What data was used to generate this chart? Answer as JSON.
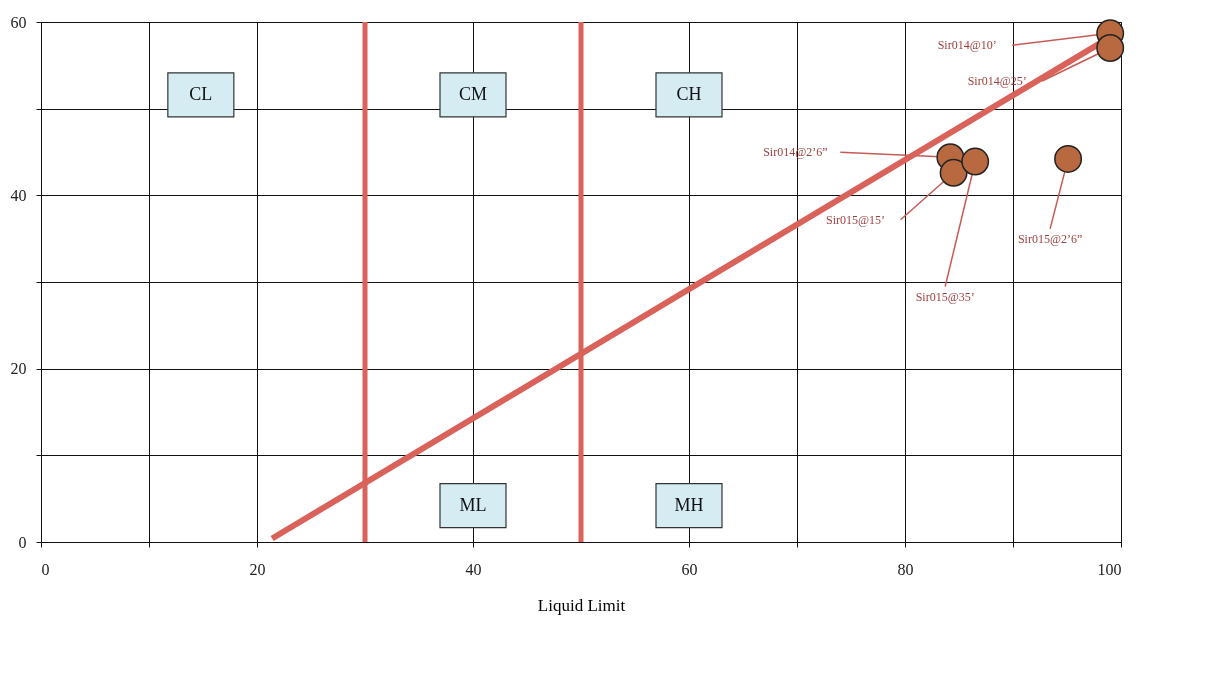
{
  "chart_data": {
    "type": "scatter",
    "xlabel": "Liquid Limit",
    "xlim": [
      0,
      100
    ],
    "ylim": [
      0,
      60
    ],
    "xticks": [
      0,
      {
        "value": 10,
        "label": null
      },
      20,
      40,
      60,
      {
        "value": 70,
        "label": null
      },
      80,
      {
        "value": 90,
        "label": null
      },
      100
    ],
    "yticks": [
      0,
      {
        "value": 10,
        "label": null
      },
      20,
      {
        "value": 30,
        "label": null
      },
      40,
      {
        "value": 50,
        "label": null
      },
      60
    ],
    "grid": true,
    "series": [
      {
        "color": "#b8693f",
        "marker": "circle",
        "x": [
          99,
          99,
          84.2,
          84.5,
          86.5,
          95.1
        ],
        "values": [
          58.7,
          57.0,
          44.4,
          42.6,
          43.9,
          44.2
        ]
      },
      {
        "type": "line",
        "color": "#d9625a",
        "x": [
          21.4,
          98
        ],
        "values": [
          0.4,
          57.5
        ]
      }
    ],
    "ref_lines": [
      {
        "axis": "x",
        "value": 30,
        "color": "#d9625a"
      },
      {
        "axis": "x",
        "value": 50,
        "color": "#d9625a"
      }
    ],
    "annotations": [
      {
        "text": "Sir014@10’",
        "x": 99,
        "y": 58.7
      },
      {
        "text": "Sir014@25’",
        "x": 99,
        "y": 57.0
      },
      {
        "text": "Sir014@2’6”",
        "x": 84.2,
        "y": 44.4
      },
      {
        "text": "Sir015@15’",
        "x": 84.5,
        "y": 42.6
      },
      {
        "text": "Sir015@35’",
        "x": 86.5,
        "y": 43.9
      },
      {
        "text": "Sir015@2’6”",
        "x": 95.1,
        "y": 44.2
      },
      "CL",
      "CM",
      "CH",
      "ML",
      "MH"
    ]
  }
}
